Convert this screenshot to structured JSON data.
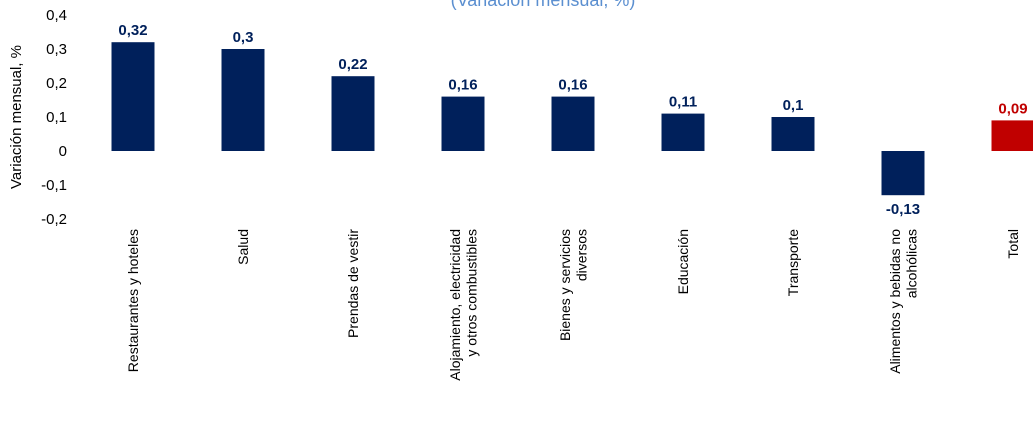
{
  "chart_data": {
    "type": "bar",
    "title": "(Variación mensual, %)",
    "ylabel": "Variación mensual, %",
    "ylim": [
      -0.2,
      0.4
    ],
    "yticks": [
      "-0,2",
      "-0,1",
      "0",
      "0,1",
      "0,2",
      "0,3",
      "0,4"
    ],
    "categories": [
      [
        "Restaurantes y hoteles"
      ],
      [
        "Salud"
      ],
      [
        "Prendas de vestir"
      ],
      [
        "Alojamiento, electricidad",
        "y otros combustibles"
      ],
      [
        "Bienes y servicios",
        "diversos"
      ],
      [
        "Educación"
      ],
      [
        "Transporte"
      ],
      [
        "Alimentos y bebidas no",
        "alcohólicas"
      ],
      [
        "Total"
      ]
    ],
    "values": [
      0.32,
      0.3,
      0.22,
      0.16,
      0.16,
      0.11,
      0.1,
      -0.13,
      0.09
    ],
    "value_labels": [
      "0,32",
      "0,3",
      "0,22",
      "0,16",
      "0,16",
      "0,11",
      "0,1",
      "-0,13",
      "0,09"
    ],
    "colors": {
      "bar": "#00205B",
      "total_bar": "#C00000",
      "label": "#00205B",
      "total_label": "#C00000",
      "title": "#5B8FD0"
    },
    "highlight_index": 8,
    "grid": false,
    "legend": "none"
  }
}
